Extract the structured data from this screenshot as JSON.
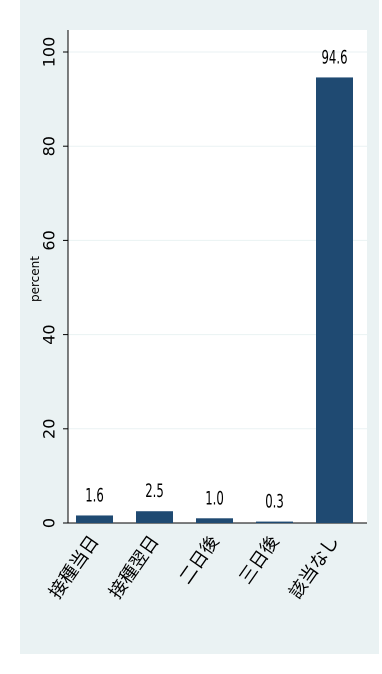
{
  "chart_data": {
    "type": "bar",
    "categories": [
      "接種当日",
      "接種翌日",
      "二日後",
      "三日後",
      "該当なし"
    ],
    "values": [
      1.6,
      2.5,
      1.0,
      0.3,
      94.6
    ],
    "value_labels": [
      "1.6",
      "2.5",
      "1.0",
      "0.3",
      "94.6"
    ],
    "title": "",
    "xlabel": "",
    "ylabel": "percent",
    "ylim": [
      0,
      100
    ],
    "yticks": [
      0,
      20,
      40,
      60,
      80,
      100
    ],
    "ytick_labels": [
      "0",
      "20",
      "40",
      "60",
      "80",
      "100"
    ],
    "grid": true,
    "legend": "none",
    "colors": {
      "bar": "#1f4a72",
      "background": "#eaf2f3",
      "plot_background": "#ffffff",
      "grid": "#eaf2f3"
    }
  }
}
